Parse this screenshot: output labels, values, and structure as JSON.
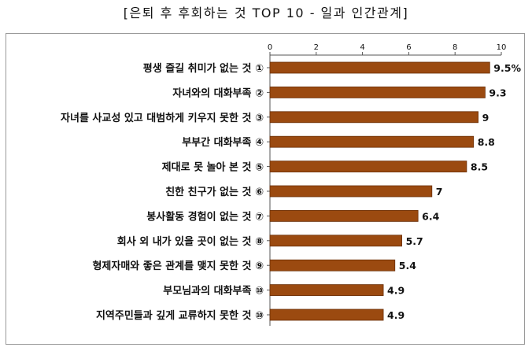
{
  "chart_data": {
    "type": "bar",
    "orientation": "horizontal",
    "title": "[은퇴 후 후회하는 것 TOP 10 - 일과 인간관계]",
    "categories": [
      "평생 즐길 취미가 없는 것 ①",
      "자녀와의 대화부족 ②",
      "자녀를 사교성 있고 대범하게 키우지 못한 것 ③",
      "부부간 대화부족 ④",
      "제대로 못 놀아 본 것 ⑤",
      "친한 친구가 없는 것 ⑥",
      "봉사활동 경험이 없는 것 ⑦",
      "회사 외 내가 있을 곳이 없는 것 ⑧",
      "형제자매와 좋은 관계를 맺지 못한 것 ⑨",
      "부모님과의 대화부족 ⑩",
      "지역주민들과 깊게 교류하지 못한 것 ⑩"
    ],
    "values": [
      9.5,
      9.3,
      9,
      8.8,
      8.5,
      7,
      6.4,
      5.7,
      5.4,
      4.9,
      4.9
    ],
    "value_labels": [
      "9.5%",
      "9.3",
      "9",
      "8.8",
      "8.5",
      "7",
      "6.4",
      "5.7",
      "5.4",
      "4.9",
      "4.9"
    ],
    "xlim": [
      0,
      10
    ],
    "xticks": [
      0,
      2,
      4,
      6,
      8,
      10
    ],
    "axis_position": "top",
    "grid": false,
    "bar_color": "#9b4a10",
    "bar_edge_color": "#6a2f08"
  }
}
